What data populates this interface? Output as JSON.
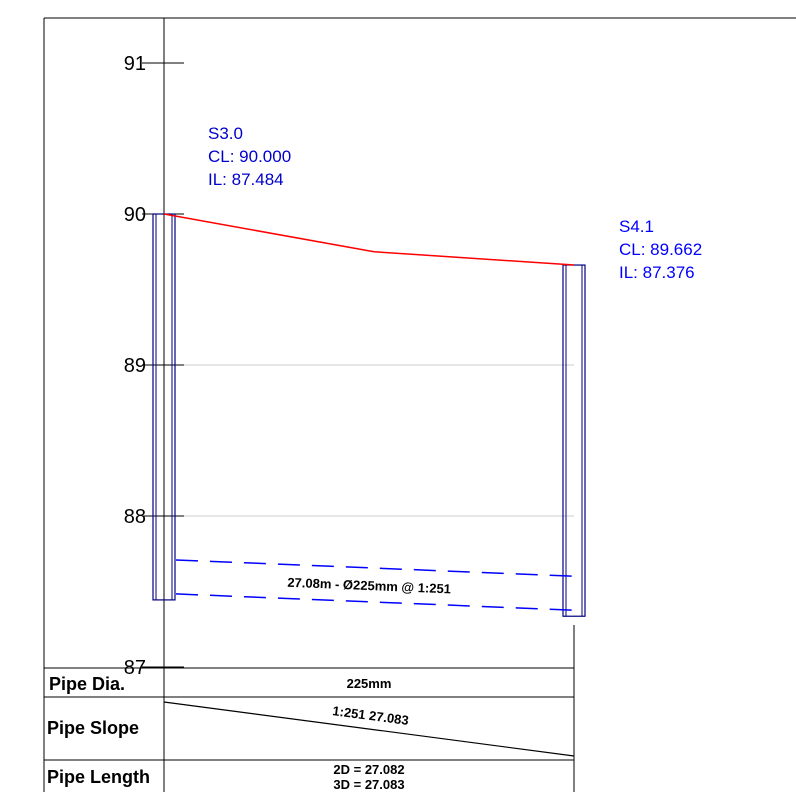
{
  "chart_data": {
    "type": "diagram",
    "y_axis": {
      "ticks": [
        "91",
        "90",
        "89",
        "88",
        "87"
      ],
      "gridlines": [
        "89",
        "88"
      ]
    },
    "manholes": [
      {
        "name": "S3.0",
        "cover_label": "CL: 90.000",
        "invert_label": "IL: 87.484",
        "cover_level": 90.0,
        "invert_level": 87.484
      },
      {
        "name": "S4.1",
        "cover_label": "CL: 89.662",
        "invert_label": "IL: 87.376",
        "cover_level": 89.662,
        "invert_level": 87.376
      }
    ],
    "ground_profile_mid_level": 89.75,
    "pipe": {
      "label": "27.08m - Ø225mm @ 1:251",
      "length_m": 27.08,
      "diameter_mm": 225,
      "slope": "1:251"
    },
    "table": {
      "rows": [
        {
          "label": "Pipe Dia.",
          "value": "225mm"
        },
        {
          "label": "Pipe Slope",
          "value": "1:251 27.083"
        },
        {
          "label": "Pipe Length",
          "value_2d": "2D = 27.082",
          "value_3d": "3D = 27.083"
        }
      ]
    },
    "colors": {
      "ground_line": "#ff0000",
      "pipe_line": "#0000ff",
      "manhole_outline": "#000080",
      "label_blue": "#0000ff",
      "label_dark_blue": "#0000cc",
      "gridline": "#cccccc"
    }
  }
}
